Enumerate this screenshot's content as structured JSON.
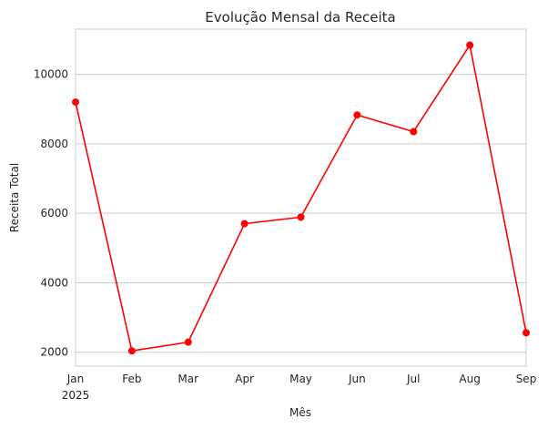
{
  "chart_data": {
    "type": "line",
    "title": "Evolução Mensal da Receita",
    "xlabel": "Mês",
    "ylabel": "Receita Total",
    "x": [
      "Jan",
      "Feb",
      "Mar",
      "Apr",
      "May",
      "Jun",
      "Jul",
      "Aug",
      "Sep"
    ],
    "x_year_label": "2025",
    "series": [
      {
        "values": [
          9200,
          2040,
          2290,
          5700,
          5890,
          8830,
          8350,
          10840,
          2560
        ]
      }
    ],
    "ylim": [
      1600,
      11300
    ],
    "yticks": [
      2000,
      4000,
      6000,
      8000,
      10000
    ],
    "grid": "horizontal",
    "legend": "none",
    "line_color": "#ff0000",
    "marker": "circle"
  }
}
